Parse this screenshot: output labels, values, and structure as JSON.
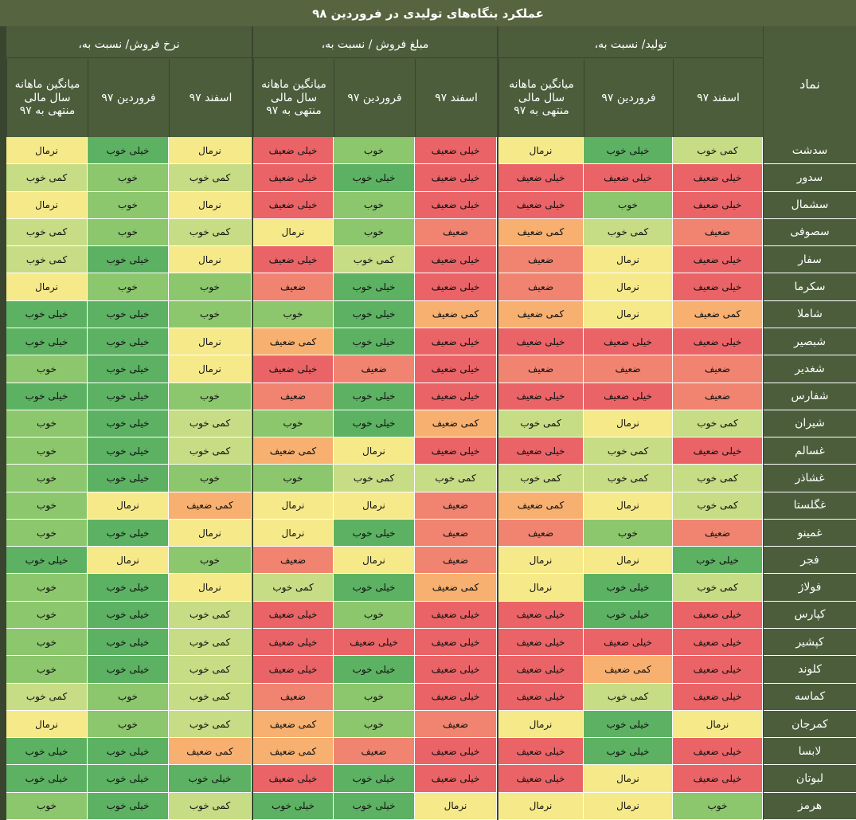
{
  "title": "عملکرد بنگاه‌های تولیدی در فروردین ۹۸",
  "headers": {
    "symbol": "نماد",
    "groups": [
      "تولید/ نسبت به،",
      "مبلغ فروش / نسبت به،",
      "نرخ فروش/ نسبت به،"
    ],
    "subs": [
      "اسفند ۹۷",
      "فروردین ۹۷",
      "میانگین ماهانه سال مالی منتهی به ۹۷"
    ]
  },
  "colors": {
    "خیلی خوب": "#5cb262",
    "خوب": "#8cc66d",
    "کمی خوب": "#c6dc85",
    "نرمال": "#f6e98a",
    "کمی ضعیف": "#f7b06f",
    "ضعیف": "#f08470",
    "خیلی ضعیف": "#ea6467"
  },
  "rows": [
    {
      "name": "سدشت",
      "v": [
        "کمی خوب",
        "خیلی خوب",
        "نرمال",
        "خیلی ضعیف",
        "خوب",
        "خیلی ضعیف",
        "نرمال",
        "خیلی خوب",
        "نرمال"
      ]
    },
    {
      "name": "سدور",
      "v": [
        "خیلی ضعیف",
        "خیلی ضعیف",
        "خیلی ضعیف",
        "خیلی ضعیف",
        "خیلی خوب",
        "خیلی ضعیف",
        "کمی خوب",
        "خوب",
        "کمی خوب"
      ]
    },
    {
      "name": "سشمال",
      "v": [
        "خیلی ضعیف",
        "خوب",
        "خیلی ضعیف",
        "خیلی ضعیف",
        "خوب",
        "خیلی ضعیف",
        "نرمال",
        "خوب",
        "نرمال"
      ]
    },
    {
      "name": "سصوفی",
      "v": [
        "ضعیف",
        "کمی خوب",
        "کمی ضعیف",
        "ضعیف",
        "خوب",
        "نرمال",
        "کمی خوب",
        "خوب",
        "کمی خوب"
      ]
    },
    {
      "name": "سفار",
      "v": [
        "خیلی ضعیف",
        "نرمال",
        "ضعیف",
        "خیلی ضعیف",
        "کمی خوب",
        "خیلی ضعیف",
        "نرمال",
        "خیلی خوب",
        "کمی خوب"
      ]
    },
    {
      "name": "سکرما",
      "v": [
        "خیلی ضعیف",
        "نرمال",
        "ضعیف",
        "خیلی ضعیف",
        "خیلی خوب",
        "ضعیف",
        "خوب",
        "خوب",
        "نرمال"
      ]
    },
    {
      "name": "شاملا",
      "v": [
        "کمی ضعیف",
        "نرمال",
        "کمی ضعیف",
        "کمی ضعیف",
        "خیلی خوب",
        "خوب",
        "خوب",
        "خیلی خوب",
        "خیلی خوب"
      ]
    },
    {
      "name": "شبصیر",
      "v": [
        "خیلی ضعیف",
        "خیلی ضعیف",
        "خیلی ضعیف",
        "خیلی ضعیف",
        "خیلی خوب",
        "کمی ضعیف",
        "نرمال",
        "خیلی خوب",
        "خیلی خوب"
      ]
    },
    {
      "name": "شغدیر",
      "v": [
        "ضعیف",
        "ضعیف",
        "ضعیف",
        "خیلی ضعیف",
        "ضعیف",
        "خیلی ضعیف",
        "نرمال",
        "خیلی خوب",
        "خوب"
      ]
    },
    {
      "name": "شفارس",
      "v": [
        "ضعیف",
        "خیلی ضعیف",
        "خیلی ضعیف",
        "خیلی ضعیف",
        "خیلی خوب",
        "ضعیف",
        "خوب",
        "خیلی خوب",
        "خیلی خوب"
      ]
    },
    {
      "name": "شیران",
      "v": [
        "کمی خوب",
        "نرمال",
        "کمی خوب",
        "کمی ضعیف",
        "خیلی خوب",
        "خوب",
        "کمی خوب",
        "خیلی خوب",
        "خوب"
      ]
    },
    {
      "name": "غسالم",
      "v": [
        "خیلی ضعیف",
        "کمی خوب",
        "خیلی ضعیف",
        "خیلی ضعیف",
        "نرمال",
        "کمی ضعیف",
        "کمی خوب",
        "خیلی خوب",
        "خوب"
      ]
    },
    {
      "name": "غشاذر",
      "v": [
        "کمی خوب",
        "کمی خوب",
        "کمی خوب",
        "کمی خوب",
        "کمی خوب",
        "خوب",
        "خوب",
        "خیلی خوب",
        "خوب"
      ]
    },
    {
      "name": "غگلستا",
      "v": [
        "کمی خوب",
        "نرمال",
        "کمی ضعیف",
        "ضعیف",
        "نرمال",
        "نرمال",
        "کمی ضعیف",
        "نرمال",
        "خوب"
      ]
    },
    {
      "name": "غمینو",
      "v": [
        "ضعیف",
        "خوب",
        "ضعیف",
        "ضعیف",
        "خیلی خوب",
        "نرمال",
        "نرمال",
        "خیلی خوب",
        "خوب"
      ]
    },
    {
      "name": "فجر",
      "v": [
        "خیلی خوب",
        "نرمال",
        "نرمال",
        "ضعیف",
        "نرمال",
        "ضعیف",
        "خوب",
        "نرمال",
        "خیلی خوب"
      ]
    },
    {
      "name": "فولاژ",
      "v": [
        "کمی خوب",
        "خیلی خوب",
        "نرمال",
        "کمی ضعیف",
        "خیلی خوب",
        "کمی خوب",
        "نرمال",
        "خیلی خوب",
        "خوب"
      ]
    },
    {
      "name": "کپارس",
      "v": [
        "خیلی ضعیف",
        "خیلی خوب",
        "خیلی ضعیف",
        "خیلی ضعیف",
        "خوب",
        "خیلی ضعیف",
        "کمی خوب",
        "خیلی خوب",
        "خوب"
      ]
    },
    {
      "name": "کپشیر",
      "v": [
        "خیلی ضعیف",
        "خیلی ضعیف",
        "خیلی ضعیف",
        "خیلی ضعیف",
        "خیلی ضعیف",
        "خیلی ضعیف",
        "کمی خوب",
        "خیلی خوب",
        "خوب"
      ]
    },
    {
      "name": "کلوند",
      "v": [
        "خیلی ضعیف",
        "کمی ضعیف",
        "خیلی ضعیف",
        "خیلی ضعیف",
        "خیلی خوب",
        "خیلی ضعیف",
        "کمی خوب",
        "خیلی خوب",
        "خوب"
      ]
    },
    {
      "name": "کماسه",
      "v": [
        "خیلی ضعیف",
        "کمی خوب",
        "خیلی ضعیف",
        "خیلی ضعیف",
        "خوب",
        "ضعیف",
        "کمی خوب",
        "خوب",
        "کمی خوب"
      ]
    },
    {
      "name": "کمرجان",
      "v": [
        "نرمال",
        "خیلی خوب",
        "نرمال",
        "ضعیف",
        "خوب",
        "کمی ضعیف",
        "کمی خوب",
        "خوب",
        "نرمال"
      ]
    },
    {
      "name": "لابسا",
      "v": [
        "خیلی ضعیف",
        "خیلی خوب",
        "خیلی ضعیف",
        "خیلی ضعیف",
        "ضعیف",
        "کمی ضعیف",
        "کمی ضعیف",
        "خیلی خوب",
        "خیلی خوب"
      ]
    },
    {
      "name": "لبوتان",
      "v": [
        "خیلی ضعیف",
        "نرمال",
        "خیلی ضعیف",
        "خیلی ضعیف",
        "خیلی خوب",
        "خیلی ضعیف",
        "خیلی خوب",
        "خیلی خوب",
        "خیلی خوب"
      ]
    },
    {
      "name": "هرمز",
      "v": [
        "خوب",
        "نرمال",
        "نرمال",
        "نرمال",
        "خیلی خوب",
        "خیلی خوب",
        "کمی خوب",
        "خیلی خوب",
        "خوب"
      ]
    }
  ]
}
